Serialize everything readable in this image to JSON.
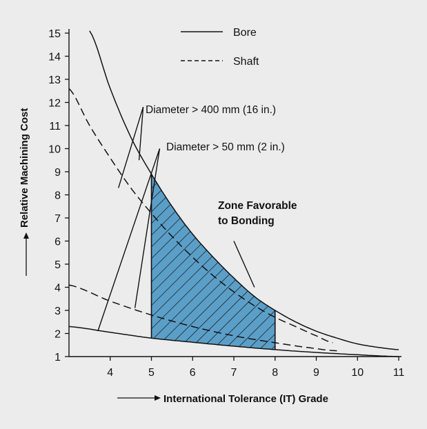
{
  "chart_data": {
    "type": "line",
    "xlabel": "International Tolerance (IT) Grade",
    "ylabel": "Relative Machining Cost",
    "xlim": [
      3,
      11
    ],
    "ylim": [
      1,
      15
    ],
    "x_ticks": [
      "4",
      "5",
      "6",
      "7",
      "8",
      "9",
      "10",
      "11"
    ],
    "y_ticks": [
      "1",
      "2",
      "3",
      "4",
      "5",
      "6",
      "7",
      "8",
      "9",
      "10",
      "11",
      "12",
      "13",
      "14",
      "15"
    ],
    "legend": {
      "placement": "top-center",
      "entries": [
        {
          "name": "Bore",
          "style": "solid"
        },
        {
          "name": "Shaft",
          "style": "dashed"
        }
      ]
    },
    "series": [
      {
        "name": "Bore",
        "group": "Diameter > 400 mm (16 in.)",
        "style": "solid",
        "x": [
          3.5,
          4,
          4.5,
          5,
          5.5,
          6,
          6.5,
          7,
          7.5,
          8,
          8.5,
          9,
          9.5,
          10,
          10.5,
          11
        ],
        "y": [
          15.1,
          12.6,
          10.5,
          8.9,
          7.5,
          6.3,
          5.3,
          4.4,
          3.6,
          3.0,
          2.5,
          2.1,
          1.8,
          1.55,
          1.4,
          1.3
        ]
      },
      {
        "name": "Shaft",
        "group": "Diameter > 400 mm (16 in.)",
        "style": "dashed",
        "x": [
          3,
          3.5,
          4,
          4.5,
          5,
          5.5,
          6,
          6.5,
          7,
          7.5,
          8,
          8.5,
          9,
          9.4
        ],
        "y": [
          12.6,
          11.0,
          9.6,
          8.3,
          7.2,
          6.2,
          5.3,
          4.5,
          3.8,
          3.2,
          2.7,
          2.3,
          1.9,
          1.6
        ]
      },
      {
        "name": "Bore",
        "group": "Diameter > 50 mm (2 in.)",
        "style": "solid",
        "x": [
          3,
          4,
          5,
          6,
          7,
          8,
          9,
          10,
          11
        ],
        "y": [
          2.3,
          2.05,
          1.8,
          1.62,
          1.45,
          1.3,
          1.18,
          1.08,
          1.0
        ]
      },
      {
        "name": "Shaft",
        "group": "Diameter > 50 mm (2 in.)",
        "style": "dashed",
        "x": [
          3,
          4,
          5,
          6,
          7,
          8,
          9,
          9.5
        ],
        "y": [
          4.1,
          3.4,
          2.8,
          2.3,
          1.9,
          1.6,
          1.35,
          1.25
        ]
      }
    ],
    "zone": {
      "x_from": 5,
      "x_to": 8,
      "fill": "#5b9fc8",
      "hatch": "diagonal"
    },
    "annotations": {
      "large_diameter": {
        "text": "Diameter > 400 mm (16 in.)",
        "x": 5.8,
        "y": 12.0,
        "points_to": [
          [
            4.7,
            9.5
          ],
          [
            4.2,
            8.3
          ]
        ]
      },
      "small_diameter": {
        "text": "Diameter > 50 mm (2 in.)",
        "x": 6.2,
        "y": 10.2,
        "points_to": [
          [
            4.6,
            3.1
          ],
          [
            3.7,
            2.1
          ]
        ]
      },
      "zone_line1": "Zone Favorable",
      "zone_line2": "to Bonding"
    }
  },
  "colors": {
    "background": "#ececec",
    "ink": "#111111",
    "zone_fill": "#5b9fc8"
  }
}
